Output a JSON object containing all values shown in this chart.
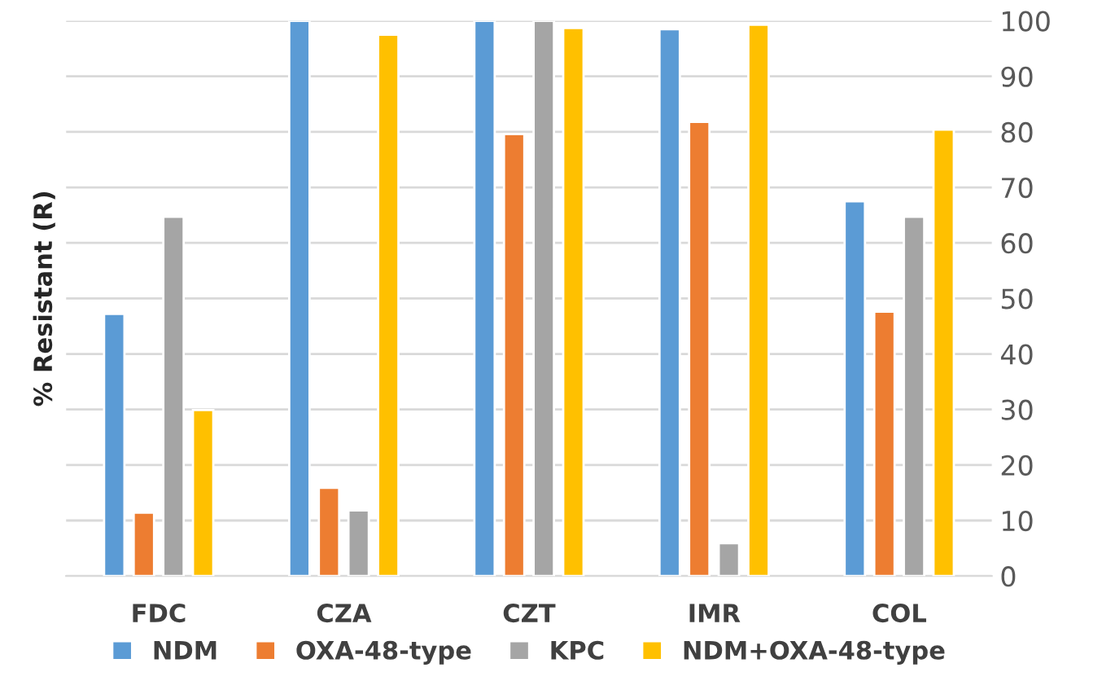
{
  "chart_data": {
    "type": "bar",
    "ylabel": "% Resistant (R)",
    "categories": [
      "FDC",
      "CZA",
      "CZT",
      "IMR",
      "COL"
    ],
    "series": [
      {
        "name": "NDM",
        "color": "#5b9bd5",
        "values": [
          47.2,
          100,
          100,
          98.5,
          67.5
        ]
      },
      {
        "name": "OXA-48-type",
        "color": "#ed7d31",
        "values": [
          11.4,
          15.9,
          79.6,
          81.8,
          47.6
        ]
      },
      {
        "name": "KPC",
        "color": "#a5a5a5",
        "values": [
          64.7,
          11.8,
          100,
          5.9,
          64.7
        ]
      },
      {
        "name": "NDM+OXA-48-type",
        "color": "#ffc000",
        "values": [
          29.9,
          97.5,
          98.7,
          99.3,
          80.4
        ]
      }
    ],
    "ylim": [
      0,
      100
    ],
    "yticks": [
      0,
      10,
      20,
      30,
      40,
      50,
      60,
      70,
      80,
      90,
      100
    ],
    "grid": "y",
    "legend": "bottom"
  }
}
